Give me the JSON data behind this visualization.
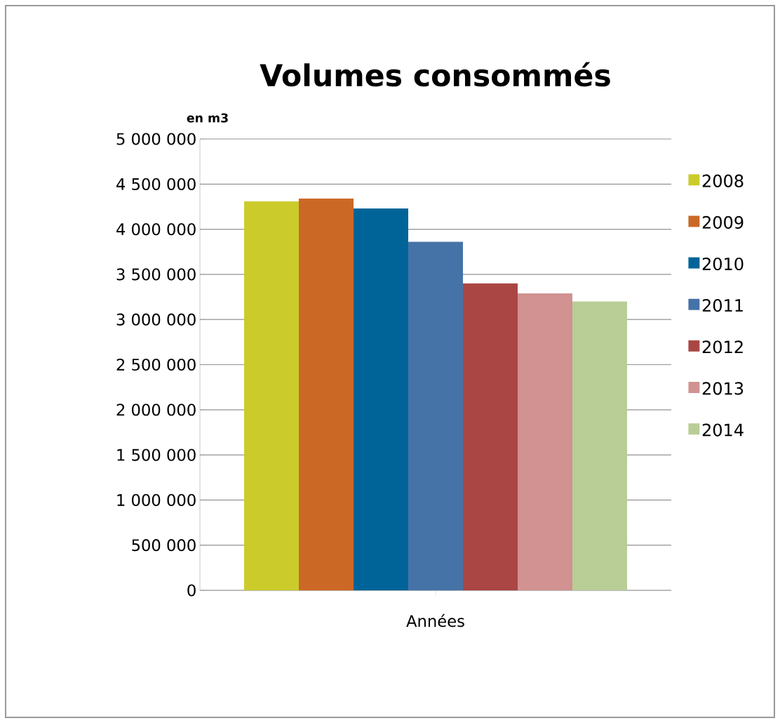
{
  "chart_data": {
    "type": "bar",
    "title": "Volumes consommés",
    "ylabel": "en m3",
    "xlabel": "Années",
    "categories": [
      null
    ],
    "series": [
      {
        "name": "2008",
        "color": "#cbcc2b",
        "values": [
          4310000
        ]
      },
      {
        "name": "2009",
        "color": "#cb6826",
        "values": [
          4340000
        ]
      },
      {
        "name": "2010",
        "color": "#016499",
        "values": [
          4230000
        ]
      },
      {
        "name": "2011",
        "color": "#4573a7",
        "values": [
          3860000
        ]
      },
      {
        "name": "2012",
        "color": "#aa4643",
        "values": [
          3400000
        ]
      },
      {
        "name": "2013",
        "color": "#d19291",
        "values": [
          3290000
        ]
      },
      {
        "name": "2014",
        "color": "#b9cd96",
        "values": [
          3200000
        ]
      }
    ],
    "ylim": [
      0,
      5000000
    ],
    "yticks": [
      {
        "value": 0,
        "label": "0"
      },
      {
        "value": 500000,
        "label": "500 000"
      },
      {
        "value": 1000000,
        "label": "1 000 000"
      },
      {
        "value": 1500000,
        "label": "1 500 000"
      },
      {
        "value": 2000000,
        "label": "2 000 000"
      },
      {
        "value": 2500000,
        "label": "2 500 000"
      },
      {
        "value": 3000000,
        "label": "3 000 000"
      },
      {
        "value": 3500000,
        "label": "3 500 000"
      },
      {
        "value": 4000000,
        "label": "4 000 000"
      },
      {
        "value": 4500000,
        "label": "4 500 000"
      },
      {
        "value": 5000000,
        "label": "5 000 000"
      }
    ],
    "grid": "y",
    "legend": "right"
  }
}
